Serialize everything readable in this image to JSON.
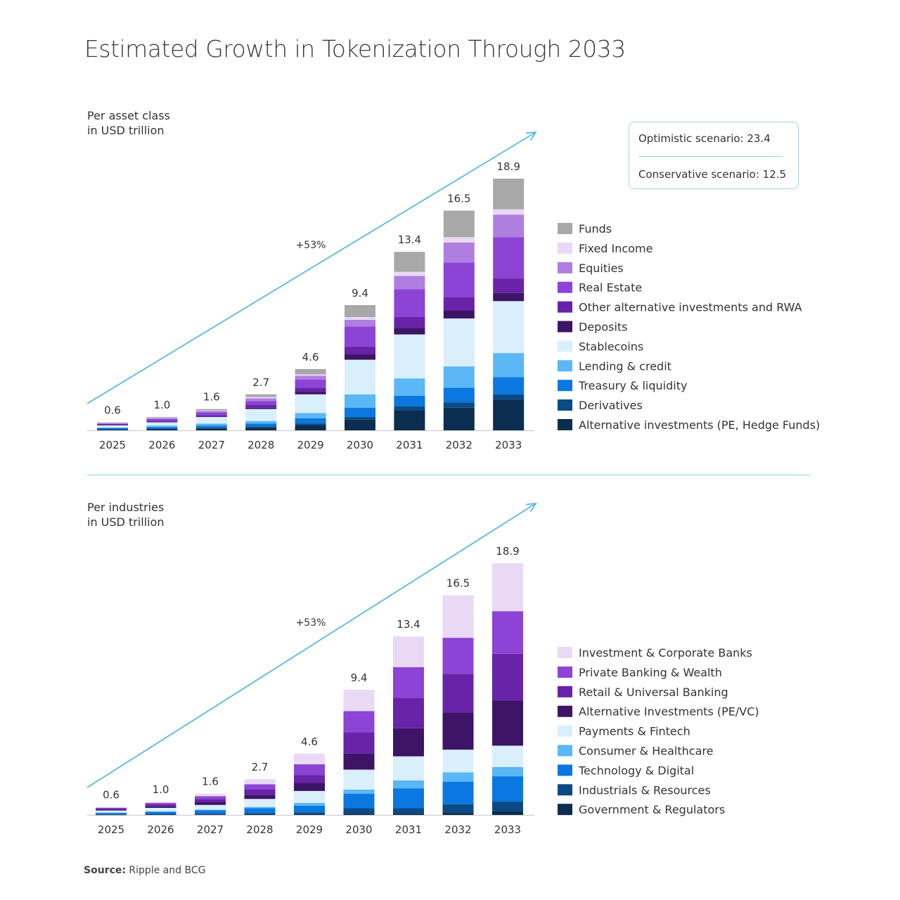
{
  "title": "Estimated Growth in Tokenization Through 2033",
  "source_label": "Source:",
  "source_text": " Ripple and BCG",
  "scenario_box": {
    "optimistic": "Optimistic scenario: 23.4",
    "conservative": "Conservative scenario: 12.5"
  },
  "chart_data": [
    {
      "type": "bar",
      "stacked": true,
      "title": "Per asset class",
      "subtitle": "in USD trillion",
      "annotation": "+53%",
      "legend_position": "right",
      "categories": [
        "2025",
        "2026",
        "2027",
        "2028",
        "2029",
        "2030",
        "2031",
        "2032",
        "2033"
      ],
      "totals": [
        "0.6",
        "1.0",
        "1.6",
        "2.7",
        "4.6",
        "9.4",
        "13.4",
        "16.5",
        "18.9"
      ],
      "series": [
        {
          "name": "Alternative investments (PE, Hedge Funds)",
          "color": "#0b2d4f",
          "values": [
            0.05,
            0.08,
            0.15,
            0.2,
            0.4,
            0.8,
            1.5,
            1.7,
            2.3
          ]
        },
        {
          "name": "Derivatives",
          "color": "#0a4a85",
          "values": [
            0.03,
            0.05,
            0.05,
            0.1,
            0.1,
            0.2,
            0.3,
            0.4,
            0.4
          ]
        },
        {
          "name": "Treasury & liquidity",
          "color": "#0a78e0",
          "values": [
            0.08,
            0.12,
            0.15,
            0.2,
            0.4,
            0.7,
            0.8,
            1.1,
            1.3
          ]
        },
        {
          "name": "Lending & credit",
          "color": "#5bb7f5",
          "values": [
            0.06,
            0.1,
            0.15,
            0.2,
            0.4,
            1.0,
            1.3,
            1.6,
            1.8
          ]
        },
        {
          "name": "Stablecoins",
          "color": "#d9effc",
          "values": [
            0.15,
            0.25,
            0.5,
            0.9,
            1.4,
            2.6,
            3.3,
            3.6,
            3.9
          ]
        },
        {
          "name": "Deposits",
          "color": "#3d1466",
          "values": [
            0.03,
            0.05,
            0.05,
            0.1,
            0.2,
            0.4,
            0.5,
            0.6,
            0.6
          ]
        },
        {
          "name": "Other alternative investments and RWA",
          "color": "#6823a8",
          "values": [
            0.05,
            0.08,
            0.1,
            0.2,
            0.3,
            0.6,
            0.8,
            1.0,
            1.1
          ]
        },
        {
          "name": "Real Estate",
          "color": "#8c43d6",
          "values": [
            0.06,
            0.12,
            0.2,
            0.3,
            0.6,
            1.5,
            2.1,
            2.6,
            3.1
          ]
        },
        {
          "name": "Equities",
          "color": "#b07ee0",
          "values": [
            0.04,
            0.07,
            0.1,
            0.2,
            0.3,
            0.5,
            1.0,
            1.5,
            1.7
          ]
        },
        {
          "name": "Fixed Income",
          "color": "#ead9f5",
          "values": [
            0.02,
            0.03,
            0.05,
            0.1,
            0.1,
            0.2,
            0.3,
            0.4,
            0.4
          ]
        },
        {
          "name": "Funds",
          "color": "#a8a8a8",
          "values": [
            0.03,
            0.05,
            0.1,
            0.2,
            0.4,
            0.9,
            1.5,
            2.0,
            2.3
          ]
        }
      ]
    },
    {
      "type": "bar",
      "stacked": true,
      "title": "Per industries",
      "subtitle": "in USD trillion",
      "annotation": "+53%",
      "legend_position": "right",
      "categories": [
        "2025",
        "2026",
        "2027",
        "2028",
        "2029",
        "2030",
        "2031",
        "2032",
        "2033"
      ],
      "totals": [
        "0.6",
        "1.0",
        "1.6",
        "2.7",
        "4.6",
        "9.4",
        "13.4",
        "16.5",
        "18.9"
      ],
      "series": [
        {
          "name": "Government & Regulators",
          "color": "#0b2d4f",
          "values": [
            0.02,
            0.03,
            0.03,
            0.05,
            0.05,
            0.1,
            0.1,
            0.2,
            0.3
          ]
        },
        {
          "name": "Industrials & Resources",
          "color": "#0a4a85",
          "values": [
            0.03,
            0.05,
            0.07,
            0.1,
            0.15,
            0.4,
            0.4,
            0.6,
            0.7
          ]
        },
        {
          "name": "Technology & Digital",
          "color": "#0a78e0",
          "values": [
            0.1,
            0.15,
            0.25,
            0.35,
            0.5,
            1.1,
            1.5,
            1.7,
            1.9
          ]
        },
        {
          "name": "Consumer & Healthcare",
          "color": "#5bb7f5",
          "values": [
            0.03,
            0.05,
            0.05,
            0.1,
            0.2,
            0.3,
            0.6,
            0.7,
            0.7
          ]
        },
        {
          "name": "Payments & Fintech",
          "color": "#d9effc",
          "values": [
            0.15,
            0.25,
            0.35,
            0.6,
            0.9,
            1.5,
            1.8,
            1.7,
            1.6
          ]
        },
        {
          "name": "Alternative Investments (PE/VC)",
          "color": "#3d1466",
          "values": [
            0.07,
            0.12,
            0.2,
            0.3,
            0.6,
            1.2,
            2.1,
            2.8,
            3.4
          ]
        },
        {
          "name": "Retail & Universal Banking",
          "color": "#6823a8",
          "values": [
            0.08,
            0.15,
            0.25,
            0.4,
            0.6,
            1.6,
            2.3,
            2.9,
            3.5
          ]
        },
        {
          "name": "Private Banking & Wealth",
          "color": "#8c43d6",
          "values": [
            0.06,
            0.1,
            0.2,
            0.4,
            0.8,
            1.6,
            2.3,
            2.7,
            3.2
          ]
        },
        {
          "name": "Investment & Corporate Banks",
          "color": "#ead9f5",
          "values": [
            0.06,
            0.1,
            0.2,
            0.4,
            0.8,
            1.6,
            2.3,
            3.2,
            3.6
          ]
        }
      ]
    }
  ]
}
